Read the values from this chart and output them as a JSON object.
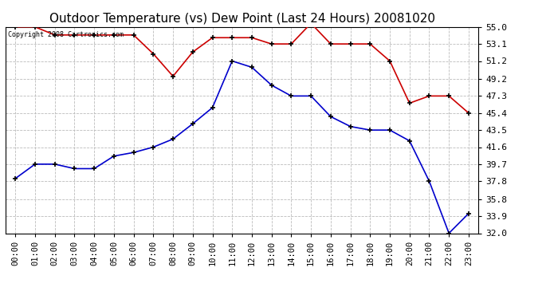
{
  "title": "Outdoor Temperature (vs) Dew Point (Last 24 Hours) 20081020",
  "copyright": "Copyright 2008 Cartronics.com",
  "x_labels": [
    "00:00",
    "01:00",
    "02:00",
    "03:00",
    "04:00",
    "05:00",
    "06:00",
    "07:00",
    "08:00",
    "09:00",
    "10:00",
    "11:00",
    "12:00",
    "13:00",
    "14:00",
    "15:00",
    "16:00",
    "17:00",
    "18:00",
    "19:00",
    "20:00",
    "21:00",
    "22:00",
    "23:00"
  ],
  "temp_data": [
    55.0,
    55.0,
    54.1,
    54.1,
    54.1,
    54.1,
    54.1,
    52.0,
    49.5,
    52.2,
    53.8,
    53.8,
    53.8,
    53.1,
    53.1,
    55.4,
    53.1,
    53.1,
    53.1,
    51.2,
    46.5,
    47.3,
    47.3,
    45.4
  ],
  "dew_data": [
    38.1,
    39.7,
    39.7,
    39.2,
    39.2,
    40.6,
    41.0,
    41.6,
    42.5,
    44.2,
    46.0,
    51.2,
    50.5,
    48.5,
    47.3,
    47.3,
    45.0,
    43.9,
    43.5,
    43.5,
    42.3,
    37.8,
    32.0,
    34.2
  ],
  "ylim": [
    32.0,
    55.0
  ],
  "yticks": [
    32.0,
    33.9,
    35.8,
    37.8,
    39.7,
    41.6,
    43.5,
    45.4,
    47.3,
    49.2,
    51.2,
    53.1,
    55.0
  ],
  "temp_color": "#cc0000",
  "dew_color": "#0000cc",
  "grid_color": "#bbbbbb",
  "bg_color": "#ffffff",
  "title_fontsize": 11,
  "tick_fontsize": 7.5,
  "ytick_fontsize": 8
}
